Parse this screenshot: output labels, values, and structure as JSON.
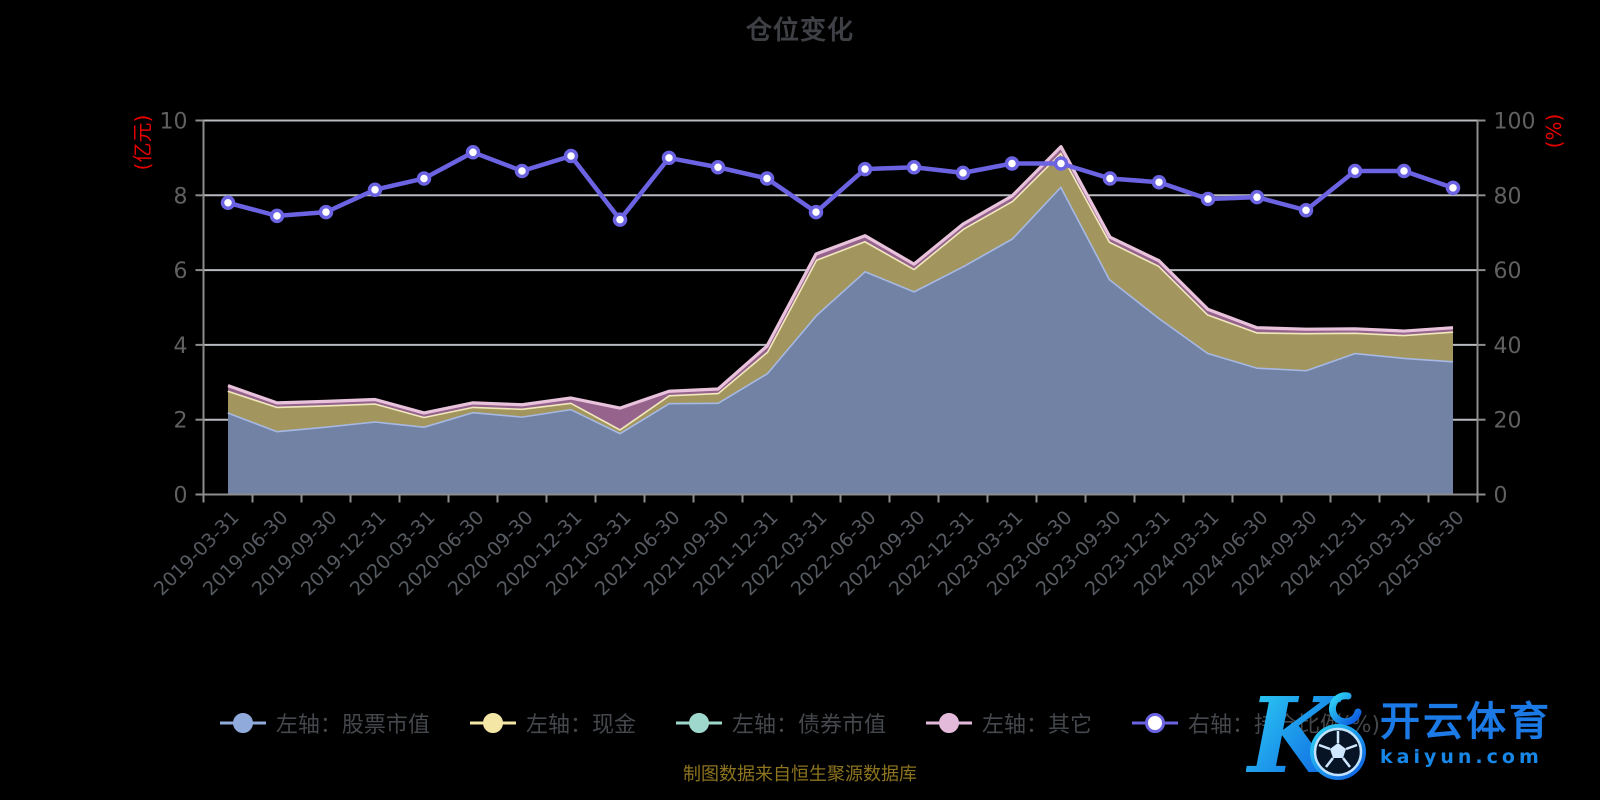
{
  "title": "仓位变化",
  "source_note": "制图数据来自恒生聚源数据库",
  "watermark": {
    "brand": "开云体育",
    "domain": "kaiyun.com"
  },
  "axes": {
    "left": {
      "name": "(亿元)",
      "ticks": [
        "0",
        "2",
        "4",
        "6",
        "8",
        "10"
      ],
      "range": [
        0,
        10
      ]
    },
    "right": {
      "name": "(%)",
      "ticks": [
        "0",
        "20",
        "40",
        "60",
        "80",
        "100"
      ],
      "range": [
        0,
        100
      ]
    }
  },
  "legend": [
    {
      "label": "左轴：股票市值",
      "color": "#90abdb",
      "marker": "solid"
    },
    {
      "label": "左轴：现金",
      "color": "#f4e6a4",
      "marker": "solid"
    },
    {
      "label": "左轴：债券市值",
      "color": "#9ed7cb",
      "marker": "solid"
    },
    {
      "label": "左轴：其它",
      "color": "#e4badb",
      "marker": "solid"
    },
    {
      "label": "右轴：持仓比例(%)",
      "color": "#6b63e2",
      "marker": "hollow"
    }
  ],
  "chart_data": {
    "type": "area",
    "grid": true,
    "categories": [
      "2019-03-31",
      "2019-06-30",
      "2019-09-30",
      "2019-12-31",
      "2020-03-31",
      "2020-06-30",
      "2020-09-30",
      "2020-12-31",
      "2021-03-31",
      "2021-06-30",
      "2021-09-30",
      "2021-12-31",
      "2022-03-31",
      "2022-06-30",
      "2022-09-30",
      "2022-12-31",
      "2023-03-31",
      "2023-06-30",
      "2023-09-30",
      "2023-12-31",
      "2024-03-31",
      "2024-06-30",
      "2024-09-30",
      "2024-12-31",
      "2025-03-31",
      "2025-06-30"
    ],
    "ylim_left": [
      0,
      10
    ],
    "ylim_right": [
      0,
      100
    ],
    "series": [
      {
        "name": "左轴：股票市值",
        "axis": "left",
        "kind": "stacked-area",
        "line_color": "#a6b8e4",
        "fill_color": "#7182a5",
        "values": [
          2.2,
          1.7,
          1.82,
          1.96,
          1.82,
          2.21,
          2.09,
          2.29,
          1.65,
          2.45,
          2.46,
          3.25,
          4.8,
          5.98,
          5.44,
          6.11,
          6.85,
          8.25,
          5.76,
          4.73,
          3.79,
          3.4,
          3.33,
          3.79,
          3.66,
          3.57
        ]
      },
      {
        "name": "左轴：现金",
        "axis": "left",
        "kind": "stacked-area",
        "line_color": "#f1e8bd",
        "fill_color": "#a2965e",
        "values": [
          0.58,
          0.65,
          0.57,
          0.48,
          0.26,
          0.14,
          0.21,
          0.17,
          0.1,
          0.21,
          0.26,
          0.57,
          1.48,
          0.8,
          0.6,
          1.0,
          1.0,
          0.9,
          1.0,
          1.39,
          1.03,
          0.94,
          0.99,
          0.54,
          0.61,
          0.79
        ]
      },
      {
        "name": "左轴：债券市值",
        "axis": "left",
        "kind": "stacked-area",
        "line_color": "#9ed7cb",
        "fill_color": "#4f8d83",
        "values": [
          0,
          0,
          0,
          0,
          0,
          0,
          0,
          0,
          0,
          0,
          0,
          0,
          0,
          0,
          0,
          0,
          0,
          0,
          0,
          0,
          0,
          0,
          0,
          0,
          0,
          0
        ]
      },
      {
        "name": "左轴：其它",
        "axis": "left",
        "kind": "stacked-area",
        "line_color": "#e9c3dc",
        "fill_color": "#95638c",
        "values": [
          0.13,
          0.1,
          0.1,
          0.1,
          0.1,
          0.1,
          0.1,
          0.12,
          0.56,
          0.1,
          0.1,
          0.15,
          0.15,
          0.14,
          0.12,
          0.12,
          0.13,
          0.15,
          0.12,
          0.13,
          0.13,
          0.12,
          0.1,
          0.1,
          0.1,
          0.1
        ]
      },
      {
        "name": "右轴：持仓比例(%)",
        "axis": "right",
        "kind": "line-dots",
        "line_color": "#6b63e2",
        "dot_fill": "#ffffff",
        "values": [
          78,
          74.5,
          75.5,
          81.5,
          84.5,
          91.5,
          86.5,
          90.5,
          73.5,
          90,
          87.5,
          84.5,
          75.5,
          87,
          87.5,
          86,
          88.5,
          88.5,
          84.5,
          83.5,
          79,
          79.5,
          76,
          86.5,
          86.5,
          82
        ]
      }
    ]
  },
  "colors": {
    "background": "#000000",
    "grid_line": "#cdd0d4",
    "axis_line": "#8d8d8d",
    "tick_label": "#606060",
    "x_label": "#565a61",
    "axis_name_red": "#e60000"
  }
}
